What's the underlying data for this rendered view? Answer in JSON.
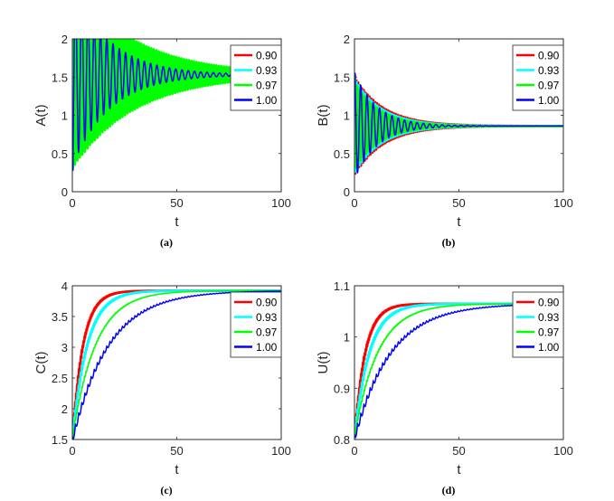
{
  "legend_title_order": [
    "0.90",
    "0.93",
    "0.97",
    "1.00"
  ],
  "colors": {
    "0.90": "#ff0000",
    "0.93": "#00ffff",
    "0.97": "#00ff00",
    "1.00": "#0000ff"
  },
  "chart_data": [
    {
      "type": "line",
      "panel": "(a)",
      "title": "",
      "xlabel": "t",
      "ylabel": "A(t)",
      "xlim": [
        0,
        100
      ],
      "ylim": [
        0,
        2
      ],
      "xticks": [
        "0",
        "50",
        "100"
      ],
      "yticks": [
        "0",
        "0.5",
        "1",
        "1.5",
        "2"
      ],
      "legend_position": "top-right",
      "legend": [
        "0.90",
        "0.93",
        "0.97",
        "1.00"
      ],
      "series": [
        {
          "name": "0.90",
          "equilibrium": 1.53,
          "start": 0.42,
          "fill_band": true,
          "band_low": 1.35,
          "band_peak": 1.83,
          "decay_t": 15,
          "period": 0.9
        },
        {
          "name": "0.93",
          "equilibrium": 1.53,
          "start": 0.35,
          "fill_band": true,
          "band_low": 1.15,
          "band_peak": 1.7,
          "decay_t": 22,
          "period": 1.0
        },
        {
          "name": "0.97",
          "equilibrium": 1.53,
          "start": 0.3,
          "fill_band": true,
          "band_low": 0.75,
          "band_peak": 1.55,
          "decay_t": 30,
          "period": 1.2
        },
        {
          "name": "1.00",
          "equilibrium": 1.53,
          "start": 0.28,
          "fill_band": false,
          "amplitude": 1.2,
          "decay_t": 18,
          "period": 3.0
        }
      ]
    },
    {
      "type": "line",
      "panel": "(b)",
      "title": "",
      "xlabel": "t",
      "ylabel": "B(t)",
      "xlim": [
        0,
        100
      ],
      "ylim": [
        0,
        2
      ],
      "xticks": [
        "0",
        "50",
        "100"
      ],
      "yticks": [
        "0",
        "0.5",
        "1",
        "1.5",
        "2"
      ],
      "legend_position": "top-right",
      "legend": [
        "0.90",
        "0.93",
        "0.97",
        "1.00"
      ],
      "series": [
        {
          "name": "0.90",
          "equilibrium": 0.86,
          "start": 1.52,
          "fill_band": true,
          "amplitude": 0.65,
          "decay_t": 14,
          "period": 0.9
        },
        {
          "name": "0.93",
          "equilibrium": 0.86,
          "start": 1.5,
          "fill_band": true,
          "amplitude": 0.62,
          "decay_t": 13,
          "period": 1.0
        },
        {
          "name": "0.97",
          "equilibrium": 0.86,
          "start": 1.48,
          "fill_band": true,
          "amplitude": 0.58,
          "decay_t": 12,
          "period": 1.2
        },
        {
          "name": "1.00",
          "equilibrium": 0.86,
          "start": 1.55,
          "fill_band": false,
          "amplitude": 0.7,
          "decay_t": 11,
          "period": 3.0
        }
      ]
    },
    {
      "type": "line",
      "panel": "(c)",
      "title": "",
      "xlabel": "t",
      "ylabel": "C(t)",
      "xlim": [
        0,
        100
      ],
      "ylim": [
        1.5,
        4
      ],
      "xticks": [
        "0",
        "50",
        "100"
      ],
      "yticks": [
        "1.5",
        "2",
        "2.5",
        "3",
        "3.5",
        "4"
      ],
      "legend_position": "top-right",
      "legend": [
        "0.90",
        "0.93",
        "0.97",
        "1.00"
      ],
      "series": [
        {
          "name": "0.90",
          "equilibrium": 3.92,
          "start": 1.55,
          "fill_band": true,
          "rise_t": 5,
          "ripple": 0.15,
          "period": 0.9
        },
        {
          "name": "0.93",
          "equilibrium": 3.92,
          "start": 1.55,
          "fill_band": true,
          "rise_t": 7,
          "ripple": 0.12,
          "period": 1.0
        },
        {
          "name": "0.97",
          "equilibrium": 3.92,
          "start": 1.55,
          "fill_band": false,
          "rise_t": 11,
          "ripple": 0.06,
          "period": 1.3
        },
        {
          "name": "1.00",
          "equilibrium": 3.92,
          "start": 1.55,
          "fill_band": false,
          "rise_t": 17,
          "ripple": 0.12,
          "period": 3.0
        }
      ]
    },
    {
      "type": "line",
      "panel": "(d)",
      "title": "",
      "xlabel": "t",
      "ylabel": "U(t)",
      "xlim": [
        0,
        100
      ],
      "ylim": [
        0.8,
        1.1
      ],
      "xticks": [
        "0",
        "50",
        "100"
      ],
      "yticks": [
        "0.8",
        "0.9",
        "1",
        "1.1"
      ],
      "legend_position": "top-right",
      "legend": [
        "0.90",
        "0.93",
        "0.97",
        "1.00"
      ],
      "series": [
        {
          "name": "0.90",
          "equilibrium": 1.065,
          "start": 0.81,
          "fill_band": true,
          "rise_t": 5,
          "ripple": 0.018,
          "period": 0.9
        },
        {
          "name": "0.93",
          "equilibrium": 1.065,
          "start": 0.81,
          "fill_band": true,
          "rise_t": 7,
          "ripple": 0.015,
          "period": 1.0
        },
        {
          "name": "0.97",
          "equilibrium": 1.065,
          "start": 0.81,
          "fill_band": false,
          "rise_t": 11,
          "ripple": 0.008,
          "period": 1.3
        },
        {
          "name": "1.00",
          "equilibrium": 1.065,
          "start": 0.81,
          "fill_band": false,
          "rise_t": 17,
          "ripple": 0.015,
          "period": 3.0
        }
      ]
    }
  ]
}
